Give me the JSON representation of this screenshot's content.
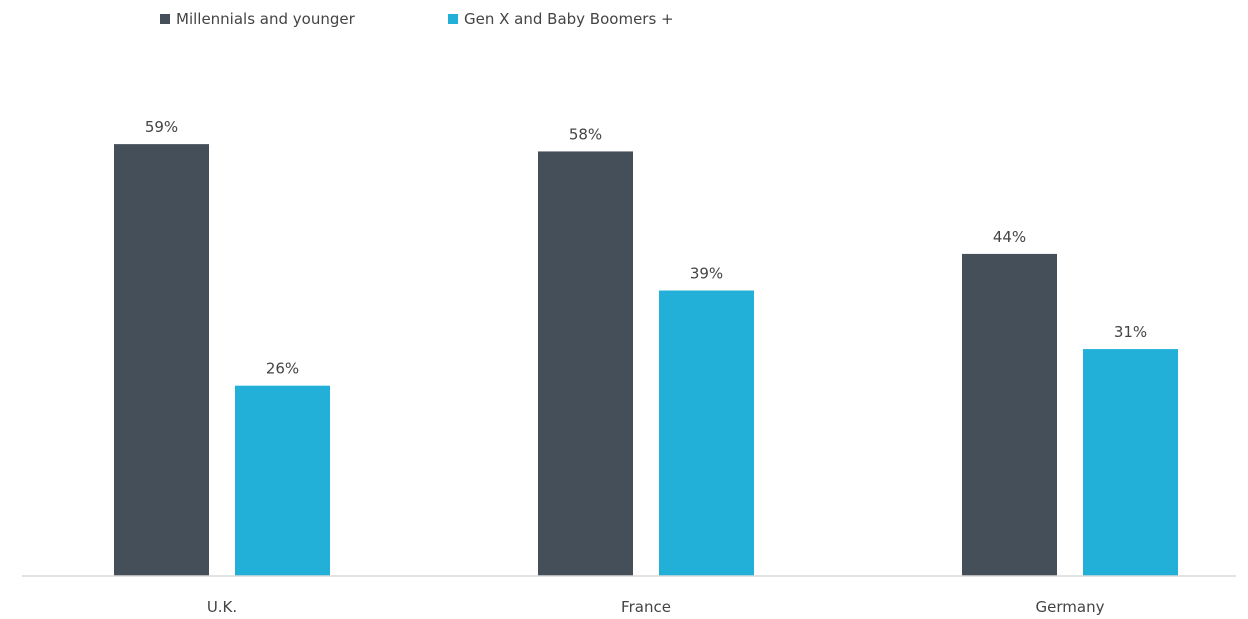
{
  "chart_data": {
    "type": "bar",
    "categories": [
      "U.K.",
      "France",
      "Germany"
    ],
    "series": [
      {
        "name": "Millennials and younger",
        "values": [
          59,
          58,
          44
        ],
        "color": "#454f59"
      },
      {
        "name": "Gen X and Baby Boomers +",
        "values": [
          26,
          39,
          31
        ],
        "color": "#22b0d9"
      }
    ],
    "value_suffix": "%",
    "title": "",
    "xlabel": "",
    "ylabel": "",
    "ylim": [
      0,
      60
    ],
    "grid": false,
    "legend_position": "top-left",
    "data_labels": true
  }
}
